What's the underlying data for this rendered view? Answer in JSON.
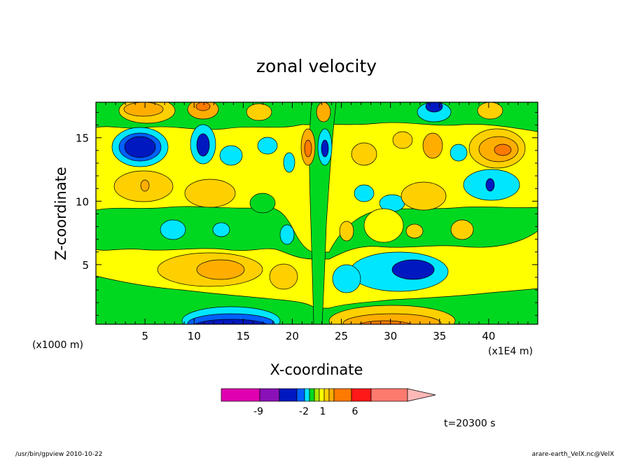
{
  "chart_data": {
    "type": "heatmap",
    "title": "zonal velocity",
    "xlabel": "X-coordinate",
    "ylabel": "Z-coordinate",
    "x_unit_note": "(x1E4 m)",
    "y_unit_note": "(x1000 m)",
    "xlim": [
      0,
      45
    ],
    "ylim": [
      0.3,
      17.8
    ],
    "x_ticks": [
      "5",
      "10",
      "15",
      "20",
      "25",
      "30",
      "35",
      "40"
    ],
    "y_ticks": [
      "5",
      "10",
      "15"
    ],
    "colorbar": {
      "labels": [
        "-9",
        "-2",
        "1",
        "6"
      ],
      "colors": [
        "#e000b0",
        "#8a10b8",
        "#0018c0",
        "#0060ff",
        "#00e6ff",
        "#00d820",
        "#a8e800",
        "#ffff00",
        "#ffd000",
        "#ffae00",
        "#ff7a00",
        "#ff1818",
        "#ff7a6e",
        "#ffb8b8"
      ]
    },
    "features": [
      {
        "x": 3.8,
        "z": 14.0,
        "value": -9
      },
      {
        "x": 11.0,
        "z": 14.4,
        "value": -9
      },
      {
        "x": 23.0,
        "z": 14.3,
        "value": -2
      },
      {
        "x": 21.8,
        "z": 14.3,
        "value": 6
      },
      {
        "x": 41.8,
        "z": 14.0,
        "value": 6
      },
      {
        "x": 40.5,
        "z": 11.2,
        "value": -9
      },
      {
        "x": 5.0,
        "z": 11.2,
        "value": 6
      },
      {
        "x": 33.0,
        "z": 4.5,
        "value": -9
      },
      {
        "x": 14.0,
        "z": 4.5,
        "value": 6
      },
      {
        "x": 13.5,
        "z": 0.6,
        "value": -9
      },
      {
        "x": 32.0,
        "z": 0.6,
        "value": 6
      }
    ]
  },
  "annotations": {
    "time": "t=20300 s",
    "footer_left": "/usr/bin/gpview  2010-10-22",
    "footer_right": "arare-earth_VelX.nc@VelX"
  }
}
